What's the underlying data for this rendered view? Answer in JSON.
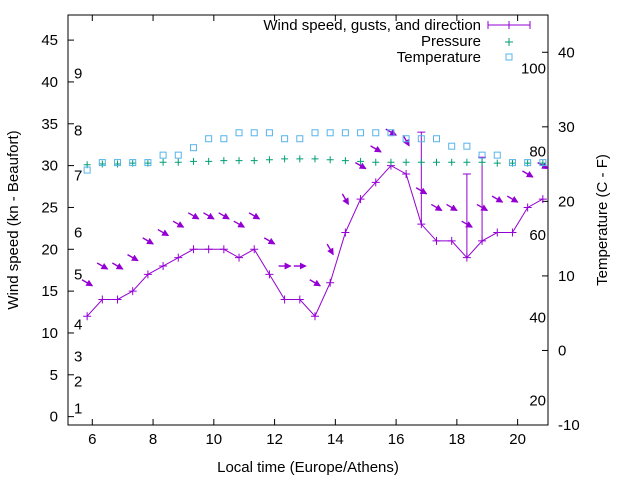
{
  "chart_data": {
    "type": "line",
    "title": "",
    "xlabel": "Local time (Europe/Athens)",
    "ylabel": "Wind speed (kn - Beaufort)",
    "y2label": "Temperature (C - F)",
    "xlim": [
      5.2,
      21.0
    ],
    "ylim": [
      -1.0,
      48.0
    ],
    "y2lim": [
      -10,
      45
    ],
    "x_ticks": [
      6,
      8,
      10,
      12,
      14,
      16,
      18,
      20
    ],
    "y_ticks": [
      0,
      5,
      10,
      15,
      20,
      25,
      30,
      35,
      40,
      45
    ],
    "y2_ticks": [
      -10,
      0,
      10,
      20,
      30,
      40
    ],
    "beaufort_labels": [
      {
        "label": "1",
        "y": 1.0
      },
      {
        "label": "2",
        "y": 4.2
      },
      {
        "label": "3",
        "y": 7.2
      },
      {
        "label": "4",
        "y": 11.0
      },
      {
        "label": "5",
        "y": 17.0
      },
      {
        "label": "6",
        "y": 22.0
      },
      {
        "label": "7",
        "y": 28.8
      },
      {
        "label": "8",
        "y": 34.2
      },
      {
        "label": "9",
        "y": 41.0
      }
    ],
    "fahrenheit_labels": [
      {
        "label": "20",
        "y2": -6.7
      },
      {
        "label": "40",
        "y2": 4.4
      },
      {
        "label": "60",
        "y2": 15.5
      },
      {
        "label": "80",
        "y2": 26.7
      },
      {
        "label": "100",
        "y2": 37.8
      }
    ],
    "legend": {
      "position": "top-right",
      "wind": "Wind speed, gusts, and direction",
      "pressure": "Pressure",
      "temperature": "Temperature"
    },
    "series": [
      {
        "name": "Wind speed, gusts, and direction",
        "style": "line-plus",
        "color": "#9400d3",
        "x": [
          5.83,
          6.33,
          6.83,
          7.33,
          7.83,
          8.33,
          8.83,
          9.33,
          9.83,
          10.33,
          10.83,
          11.33,
          11.83,
          12.33,
          12.83,
          13.33,
          13.83,
          14.33,
          14.83,
          15.33,
          15.83,
          16.33,
          16.83,
          17.33,
          17.83,
          18.33,
          18.83,
          19.33,
          19.83,
          20.33,
          20.83
        ],
        "y": [
          12,
          14,
          14,
          15,
          17,
          18,
          19,
          20,
          20,
          20,
          19,
          20,
          17,
          14,
          14,
          12,
          16,
          22,
          26,
          28,
          30,
          29,
          23,
          21,
          21,
          19,
          21,
          22,
          22,
          25,
          26
        ],
        "gusts": [
          null,
          null,
          null,
          null,
          null,
          null,
          null,
          null,
          null,
          null,
          null,
          null,
          null,
          null,
          null,
          null,
          null,
          null,
          null,
          null,
          null,
          null,
          34,
          null,
          null,
          29,
          31,
          null,
          null,
          null,
          null
        ],
        "direction_deg": [
          300,
          300,
          300,
          300,
          300,
          300,
          300,
          300,
          300,
          300,
          300,
          300,
          300,
          270,
          270,
          300,
          330,
          330,
          300,
          300,
          300,
          330,
          300,
          300,
          300,
          300,
          300,
          300,
          300,
          300,
          300
        ]
      },
      {
        "name": "Pressure",
        "style": "points-plus",
        "color": "#009e73",
        "x": [
          5.83,
          6.33,
          6.83,
          7.33,
          7.83,
          8.33,
          8.83,
          9.33,
          9.83,
          10.33,
          10.83,
          11.33,
          11.83,
          12.33,
          12.83,
          13.33,
          13.83,
          14.33,
          14.83,
          15.33,
          15.83,
          16.33,
          16.83,
          17.33,
          17.83,
          18.33,
          18.83,
          19.33,
          19.83,
          20.33,
          20.83
        ],
        "y": [
          30.1,
          30.2,
          30.2,
          30.3,
          30.3,
          30.4,
          30.4,
          30.5,
          30.5,
          30.6,
          30.6,
          30.6,
          30.7,
          30.8,
          30.8,
          30.8,
          30.7,
          30.6,
          30.5,
          30.4,
          30.4,
          30.4,
          30.4,
          30.4,
          30.4,
          30.4,
          30.4,
          30.3,
          30.3,
          30.3,
          30.3
        ]
      },
      {
        "name": "Temperature",
        "style": "points-square",
        "color": "#56b4e9",
        "x": [
          5.83,
          6.33,
          6.83,
          7.33,
          7.83,
          8.33,
          8.83,
          9.33,
          9.83,
          10.33,
          10.83,
          11.33,
          11.83,
          12.33,
          12.83,
          13.33,
          13.83,
          14.33,
          14.83,
          15.33,
          15.83,
          16.33,
          16.83,
          17.33,
          17.83,
          18.33,
          18.83,
          19.33,
          19.83,
          20.33,
          20.83
        ],
        "y2": [
          24.2,
          25.2,
          25.2,
          25.2,
          25.2,
          26.2,
          26.2,
          27.2,
          28.4,
          28.4,
          29.2,
          29.2,
          29.2,
          28.4,
          28.4,
          29.2,
          29.2,
          29.2,
          29.2,
          29.2,
          29.2,
          28.4,
          28.4,
          28.4,
          27.4,
          27.4,
          26.2,
          26.2,
          25.2,
          25.2,
          25.2
        ]
      }
    ]
  }
}
